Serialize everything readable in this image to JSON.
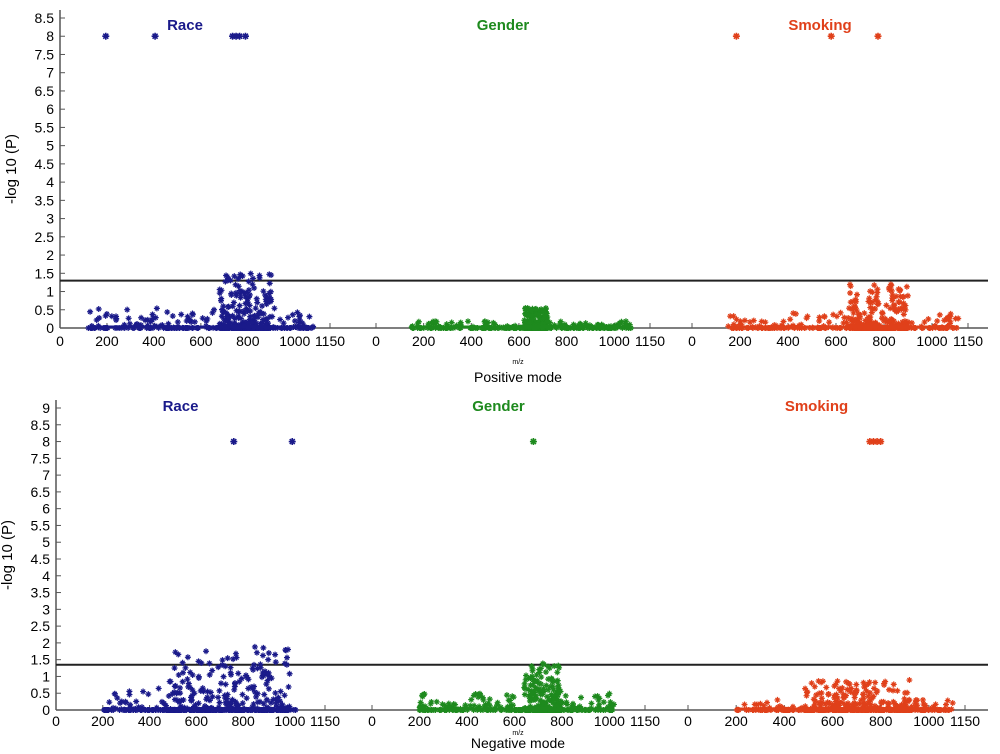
{
  "chart_data": [
    {
      "type": "scatter",
      "xlabel": "Positive mode",
      "x_unit": "m/z",
      "ylabel": "-log 10 (P)",
      "ylim": [
        0,
        8.5
      ],
      "yticks": [
        0,
        0.5,
        1,
        1.5,
        2,
        2.5,
        3,
        3.5,
        4,
        4.5,
        5,
        5.5,
        6,
        6.5,
        7,
        7.5,
        8,
        8.5
      ],
      "threshold": 1.3,
      "panels": [
        {
          "title": "Race",
          "color": "#1a1a8a",
          "xticks": [
            0,
            200,
            400,
            600,
            800,
            1000,
            1150
          ],
          "xlim": [
            0,
            1150
          ],
          "outliers": [
            {
              "x": 195,
              "y": 8
            },
            {
              "x": 405,
              "y": 8
            },
            {
              "x": 735,
              "y": 8
            },
            {
              "x": 750,
              "y": 8
            },
            {
              "x": 765,
              "y": 8
            },
            {
              "x": 790,
              "y": 8
            }
          ],
          "cloud": {
            "x_range": [
              120,
              1080
            ],
            "dense_range": [
              680,
              900
            ],
            "y_max": 1.55
          }
        },
        {
          "title": "Gender",
          "color": "#1e8a1e",
          "xticks": [
            0,
            200,
            400,
            600,
            800,
            1000,
            1150
          ],
          "xlim": [
            0,
            1150
          ],
          "outliers": [],
          "cloud": {
            "x_range": [
              150,
              1070
            ],
            "dense_range": [
              620,
              720
            ],
            "y_max": 0.55
          }
        },
        {
          "title": "Smoking",
          "color": "#e0401a",
          "xticks": [
            0,
            200,
            400,
            600,
            800,
            1000,
            1150
          ],
          "xlim": [
            0,
            1150
          ],
          "outliers": [
            {
              "x": 185,
              "y": 8
            },
            {
              "x": 580,
              "y": 8
            },
            {
              "x": 775,
              "y": 8
            }
          ],
          "cloud": {
            "x_range": [
              150,
              1110
            ],
            "dense_range": [
              650,
              900
            ],
            "y_max": 1.2
          }
        }
      ]
    },
    {
      "type": "scatter",
      "xlabel": "Negative mode",
      "x_unit": "m/z",
      "ylabel": "-log 10 (P)",
      "ylim": [
        0,
        9
      ],
      "yticks": [
        0,
        0.5,
        1,
        1.5,
        2,
        2.5,
        3,
        3.5,
        4,
        4.5,
        5,
        5.5,
        6,
        6.5,
        7,
        7.5,
        8,
        8.5,
        9
      ],
      "threshold": 1.35,
      "panels": [
        {
          "title": "Race",
          "color": "#1a1a8a",
          "xticks": [
            0,
            200,
            400,
            600,
            800,
            1000,
            1150
          ],
          "xlim": [
            0,
            1150
          ],
          "outliers": [
            {
              "x": 760,
              "y": 8
            },
            {
              "x": 1010,
              "y": 8
            }
          ],
          "cloud": {
            "x_range": [
              200,
              1030
            ],
            "dense_range": [
              480,
              1000
            ],
            "y_max": 1.9
          }
        },
        {
          "title": "Gender",
          "color": "#1e8a1e",
          "xticks": [
            0,
            200,
            400,
            600,
            800,
            1000,
            1150
          ],
          "xlim": [
            0,
            1150
          ],
          "outliers": [
            {
              "x": 680,
              "y": 8
            }
          ],
          "cloud": {
            "x_range": [
              200,
              1020
            ],
            "dense_range": [
              640,
              800
            ],
            "y_max": 1.4
          }
        },
        {
          "title": "Smoking",
          "color": "#e0401a",
          "xticks": [
            0,
            200,
            400,
            600,
            800,
            1000,
            1150
          ],
          "xlim": [
            0,
            1150
          ],
          "outliers": [
            {
              "x": 755,
              "y": 8
            },
            {
              "x": 770,
              "y": 8
            },
            {
              "x": 785,
              "y": 8
            },
            {
              "x": 800,
              "y": 8
            }
          ],
          "cloud": {
            "x_range": [
              200,
              1100
            ],
            "dense_range": [
              480,
              920
            ],
            "y_max": 0.9
          }
        }
      ]
    }
  ]
}
